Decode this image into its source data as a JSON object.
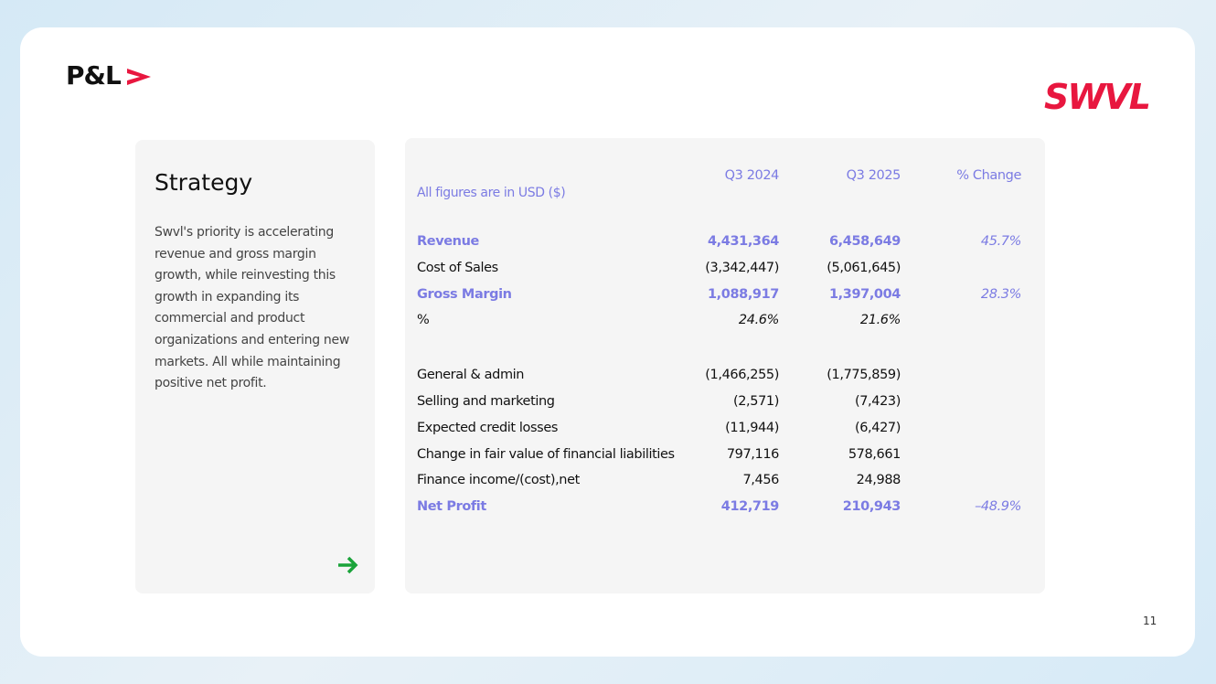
{
  "header": {
    "title": "P&L",
    "logo": "SWVL"
  },
  "strategy": {
    "title": "Strategy",
    "body": "Swvl's priority is accelerating revenue and gross margin growth, while reinvesting this growth in expanding its commercial and product organizations and entering new markets. All while maintaining positive net profit."
  },
  "table": {
    "note": "All figures are in USD ($)",
    "columns": [
      "Q3 2024",
      "Q3 2025",
      "% Change"
    ],
    "groups": [
      [
        {
          "label": "Revenue",
          "values": [
            "4,431,364",
            "6,458,649",
            "45.7%"
          ],
          "highlight": true
        },
        {
          "label": "Cost of Sales",
          "values": [
            "(3,342,447)",
            "(5,061,645)",
            null
          ],
          "highlight": false
        },
        {
          "label": "Gross Margin",
          "values": [
            "1,088,917",
            "1,397,004",
            "28.3%"
          ],
          "highlight": true
        },
        {
          "label": "%",
          "values": [
            "24.6%",
            "21.6%",
            null
          ],
          "highlight": false,
          "italic": true
        }
      ],
      [
        {
          "label": "General & admin",
          "values": [
            "(1,466,255)",
            "(1,775,859)",
            null
          ],
          "highlight": false
        },
        {
          "label": "Selling and marketing",
          "values": [
            "(2,571)",
            "(7,423)",
            null
          ],
          "highlight": false
        },
        {
          "label": "Expected credit losses",
          "values": [
            "(11,944)",
            "(6,427)",
            null
          ],
          "highlight": false
        },
        {
          "label": "Change in fair value of financial liabilities",
          "values": [
            "797,116",
            "578,661",
            null
          ],
          "highlight": false
        },
        {
          "label": "Finance income/(cost),net",
          "values": [
            "7,456",
            "24,988",
            null
          ],
          "highlight": false
        },
        {
          "label": "Net Profit",
          "values": [
            "412,719",
            "210,943",
            "–48.9%"
          ],
          "highlight": true
        }
      ]
    ]
  },
  "page_number": "11"
}
